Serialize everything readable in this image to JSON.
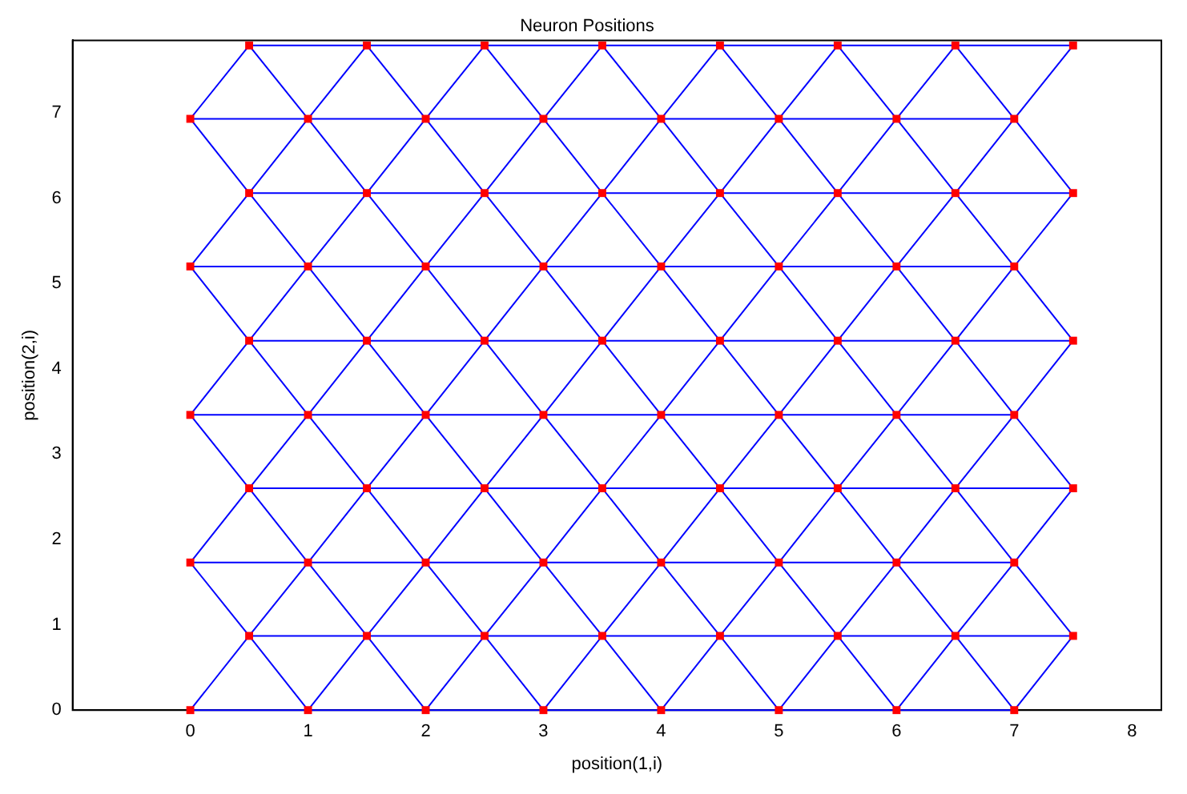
{
  "chart_data": {
    "type": "scatter",
    "title": "Neuron Positions",
    "xlabel": "position(1,i)",
    "ylabel": "position(2,i)",
    "xlim": [
      -1,
      8.25
    ],
    "ylim": [
      0,
      7.85
    ],
    "xticks": [
      0,
      1,
      2,
      3,
      4,
      5,
      6,
      7,
      8
    ],
    "yticks": [
      0,
      1,
      2,
      3,
      4,
      5,
      6,
      7
    ],
    "grid": false,
    "legend": false,
    "marker": "square",
    "series": [
      {
        "type": "line",
        "marker": "none",
        "color": "#0000ff",
        "x": [
          0,
          1,
          2,
          3,
          4,
          5,
          6,
          7
        ],
        "values": [
          0,
          0,
          0,
          0,
          0,
          0,
          0,
          0
        ]
      },
      {
        "type": "line",
        "marker": "none",
        "color": "#0000ff",
        "x": [
          0.5,
          1.5,
          2.5,
          3.5,
          4.5,
          5.5,
          6.5,
          7.5
        ],
        "values": [
          0.87,
          0.87,
          0.87,
          0.87,
          0.87,
          0.87,
          0.87,
          0.87
        ]
      },
      {
        "type": "line",
        "marker": "none",
        "color": "#0000ff",
        "x": [
          0,
          1,
          2,
          3,
          4,
          5,
          6,
          7
        ],
        "values": [
          1.73,
          1.73,
          1.73,
          1.73,
          1.73,
          1.73,
          1.73,
          1.73
        ]
      },
      {
        "type": "line",
        "marker": "none",
        "color": "#0000ff",
        "x": [
          0.5,
          1.5,
          2.5,
          3.5,
          4.5,
          5.5,
          6.5,
          7.5
        ],
        "values": [
          2.6,
          2.6,
          2.6,
          2.6,
          2.6,
          2.6,
          2.6,
          2.6
        ]
      },
      {
        "type": "line",
        "marker": "none",
        "color": "#0000ff",
        "x": [
          0,
          1,
          2,
          3,
          4,
          5,
          6,
          7
        ],
        "values": [
          3.46,
          3.46,
          3.46,
          3.46,
          3.46,
          3.46,
          3.46,
          3.46
        ]
      },
      {
        "type": "line",
        "marker": "none",
        "color": "#0000ff",
        "x": [
          0.5,
          1.5,
          2.5,
          3.5,
          4.5,
          5.5,
          6.5,
          7.5
        ],
        "values": [
          4.33,
          4.33,
          4.33,
          4.33,
          4.33,
          4.33,
          4.33,
          4.33
        ]
      },
      {
        "type": "line",
        "marker": "none",
        "color": "#0000ff",
        "x": [
          0,
          1,
          2,
          3,
          4,
          5,
          6,
          7
        ],
        "values": [
          5.2,
          5.2,
          5.2,
          5.2,
          5.2,
          5.2,
          5.2,
          5.2
        ]
      },
      {
        "type": "line",
        "marker": "none",
        "color": "#0000ff",
        "x": [
          0.5,
          1.5,
          2.5,
          3.5,
          4.5,
          5.5,
          6.5,
          7.5
        ],
        "values": [
          6.06,
          6.06,
          6.06,
          6.06,
          6.06,
          6.06,
          6.06,
          6.06
        ]
      },
      {
        "type": "line",
        "marker": "none",
        "color": "#0000ff",
        "x": [
          0,
          1,
          2,
          3,
          4,
          5,
          6,
          7
        ],
        "values": [
          6.93,
          6.93,
          6.93,
          6.93,
          6.93,
          6.93,
          6.93,
          6.93
        ]
      },
      {
        "type": "line",
        "marker": "none",
        "color": "#0000ff",
        "x": [
          0.5,
          1.5,
          2.5,
          3.5,
          4.5,
          5.5,
          6.5,
          7.5
        ],
        "values": [
          7.79,
          7.79,
          7.79,
          7.79,
          7.79,
          7.79,
          7.79,
          7.79
        ]
      },
      {
        "type": "line",
        "marker": "none",
        "color": "#0000ff",
        "x": [
          0,
          0.5,
          1,
          1.5,
          2,
          2.5,
          3,
          3.5,
          4,
          4.5,
          5,
          5.5,
          6,
          6.5,
          7,
          7.5
        ],
        "values": [
          0,
          0.87,
          0,
          0.87,
          0,
          0.87,
          0,
          0.87,
          0,
          0.87,
          0,
          0.87,
          0,
          0.87,
          0,
          0.87
        ]
      },
      {
        "type": "line",
        "marker": "none",
        "color": "#0000ff",
        "x": [
          0,
          0.5,
          1,
          1.5,
          2,
          2.5,
          3,
          3.5,
          4,
          4.5,
          5,
          5.5,
          6,
          6.5,
          7,
          7.5
        ],
        "values": [
          1.73,
          0.87,
          1.73,
          0.87,
          1.73,
          0.87,
          1.73,
          0.87,
          1.73,
          0.87,
          1.73,
          0.87,
          1.73,
          0.87,
          1.73,
          0.87
        ]
      },
      {
        "type": "line",
        "marker": "none",
        "color": "#0000ff",
        "x": [
          0,
          0.5,
          1,
          1.5,
          2,
          2.5,
          3,
          3.5,
          4,
          4.5,
          5,
          5.5,
          6,
          6.5,
          7,
          7.5
        ],
        "values": [
          1.73,
          2.6,
          1.73,
          2.6,
          1.73,
          2.6,
          1.73,
          2.6,
          1.73,
          2.6,
          1.73,
          2.6,
          1.73,
          2.6,
          1.73,
          2.6
        ]
      },
      {
        "type": "line",
        "marker": "none",
        "color": "#0000ff",
        "x": [
          0,
          0.5,
          1,
          1.5,
          2,
          2.5,
          3,
          3.5,
          4,
          4.5,
          5,
          5.5,
          6,
          6.5,
          7,
          7.5
        ],
        "values": [
          3.46,
          2.6,
          3.46,
          2.6,
          3.46,
          2.6,
          3.46,
          2.6,
          3.46,
          2.6,
          3.46,
          2.6,
          3.46,
          2.6,
          3.46,
          2.6
        ]
      },
      {
        "type": "line",
        "marker": "none",
        "color": "#0000ff",
        "x": [
          0,
          0.5,
          1,
          1.5,
          2,
          2.5,
          3,
          3.5,
          4,
          4.5,
          5,
          5.5,
          6,
          6.5,
          7,
          7.5
        ],
        "values": [
          3.46,
          4.33,
          3.46,
          4.33,
          3.46,
          4.33,
          3.46,
          4.33,
          3.46,
          4.33,
          3.46,
          4.33,
          3.46,
          4.33,
          3.46,
          4.33
        ]
      },
      {
        "type": "line",
        "marker": "none",
        "color": "#0000ff",
        "x": [
          0,
          0.5,
          1,
          1.5,
          2,
          2.5,
          3,
          3.5,
          4,
          4.5,
          5,
          5.5,
          6,
          6.5,
          7,
          7.5
        ],
        "values": [
          5.2,
          4.33,
          5.2,
          4.33,
          5.2,
          4.33,
          5.2,
          4.33,
          5.2,
          4.33,
          5.2,
          4.33,
          5.2,
          4.33,
          5.2,
          4.33
        ]
      },
      {
        "type": "line",
        "marker": "none",
        "color": "#0000ff",
        "x": [
          0,
          0.5,
          1,
          1.5,
          2,
          2.5,
          3,
          3.5,
          4,
          4.5,
          5,
          5.5,
          6,
          6.5,
          7,
          7.5
        ],
        "values": [
          5.2,
          6.06,
          5.2,
          6.06,
          5.2,
          6.06,
          5.2,
          6.06,
          5.2,
          6.06,
          5.2,
          6.06,
          5.2,
          6.06,
          5.2,
          6.06
        ]
      },
      {
        "type": "line",
        "marker": "none",
        "color": "#0000ff",
        "x": [
          0,
          0.5,
          1,
          1.5,
          2,
          2.5,
          3,
          3.5,
          4,
          4.5,
          5,
          5.5,
          6,
          6.5,
          7,
          7.5
        ],
        "values": [
          6.93,
          6.06,
          6.93,
          6.06,
          6.93,
          6.06,
          6.93,
          6.06,
          6.93,
          6.06,
          6.93,
          6.06,
          6.93,
          6.06,
          6.93,
          6.06
        ]
      },
      {
        "type": "line",
        "marker": "none",
        "color": "#0000ff",
        "x": [
          0,
          0.5,
          1,
          1.5,
          2,
          2.5,
          3,
          3.5,
          4,
          4.5,
          5,
          5.5,
          6,
          6.5,
          7,
          7.5
        ],
        "values": [
          6.93,
          7.79,
          6.93,
          7.79,
          6.93,
          7.79,
          6.93,
          7.79,
          6.93,
          7.79,
          6.93,
          7.79,
          6.93,
          7.79,
          6.93,
          7.79
        ]
      },
      {
        "color": "#ff0000",
        "x": [
          0,
          1,
          2,
          3,
          4,
          5,
          6,
          7,
          0.5,
          1.5,
          2.5,
          3.5,
          4.5,
          5.5,
          6.5,
          7.5,
          0,
          1,
          2,
          3,
          4,
          5,
          6,
          7,
          0.5,
          1.5,
          2.5,
          3.5,
          4.5,
          5.5,
          6.5,
          7.5,
          0,
          1,
          2,
          3,
          4,
          5,
          6,
          7,
          0.5,
          1.5,
          2.5,
          3.5,
          4.5,
          5.5,
          6.5,
          7.5,
          0,
          1,
          2,
          3,
          4,
          5,
          6,
          7,
          0.5,
          1.5,
          2.5,
          3.5,
          4.5,
          5.5,
          6.5,
          7.5,
          0,
          1,
          2,
          3,
          4,
          5,
          6,
          7,
          0.5,
          1.5,
          2.5,
          3.5,
          4.5,
          5.5,
          6.5,
          7.5
        ],
        "values": [
          0,
          0,
          0,
          0,
          0,
          0,
          0,
          0,
          0.87,
          0.87,
          0.87,
          0.87,
          0.87,
          0.87,
          0.87,
          0.87,
          1.73,
          1.73,
          1.73,
          1.73,
          1.73,
          1.73,
          1.73,
          1.73,
          2.6,
          2.6,
          2.6,
          2.6,
          2.6,
          2.6,
          2.6,
          2.6,
          3.46,
          3.46,
          3.46,
          3.46,
          3.46,
          3.46,
          3.46,
          3.46,
          4.33,
          4.33,
          4.33,
          4.33,
          4.33,
          4.33,
          4.33,
          4.33,
          5.2,
          5.2,
          5.2,
          5.2,
          5.2,
          5.2,
          5.2,
          5.2,
          6.06,
          6.06,
          6.06,
          6.06,
          6.06,
          6.06,
          6.06,
          6.06,
          6.93,
          6.93,
          6.93,
          6.93,
          6.93,
          6.93,
          6.93,
          6.93,
          7.79,
          7.79,
          7.79,
          7.79,
          7.79,
          7.79,
          7.79,
          7.79
        ]
      }
    ]
  }
}
